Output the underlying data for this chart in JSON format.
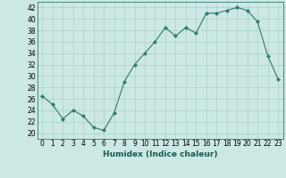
{
  "x": [
    0,
    1,
    2,
    3,
    4,
    5,
    6,
    7,
    8,
    9,
    10,
    11,
    12,
    13,
    14,
    15,
    16,
    17,
    18,
    19,
    20,
    21,
    22,
    23
  ],
  "y": [
    26.5,
    25,
    22.5,
    24,
    23,
    21,
    20.5,
    23.5,
    29,
    32,
    34,
    36,
    38.5,
    37,
    38.5,
    37.5,
    41,
    41,
    41.5,
    42,
    41.5,
    39.5,
    33.5,
    29.5
  ],
  "xlabel": "Humidex (Indice chaleur)",
  "ylabel": "",
  "xlim": [
    -0.5,
    23.5
  ],
  "ylim": [
    19,
    43
  ],
  "yticks": [
    20,
    22,
    24,
    26,
    28,
    30,
    32,
    34,
    36,
    38,
    40,
    42
  ],
  "xticks": [
    0,
    1,
    2,
    3,
    4,
    5,
    6,
    7,
    8,
    9,
    10,
    11,
    12,
    13,
    14,
    15,
    16,
    17,
    18,
    19,
    20,
    21,
    22,
    23
  ],
  "line_color": "#2d7a6e",
  "marker": "D",
  "marker_size": 2.0,
  "bg_color": "#cce8e4",
  "grid_color": "#aacfca",
  "label_fontsize": 6.5,
  "tick_fontsize": 5.5
}
